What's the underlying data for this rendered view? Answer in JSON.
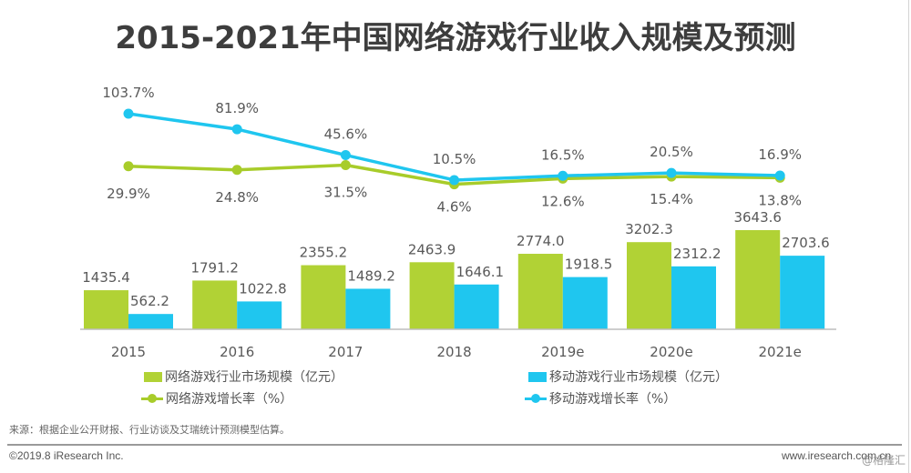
{
  "title": "2015-2021年中国网络游戏行业收入规模及预测",
  "chart_data": {
    "type": "bar+line",
    "title": "2015-2021年中国网络游戏行业收入规模及预测",
    "categories": [
      "2015",
      "2016",
      "2017",
      "2018",
      "2019e",
      "2020e",
      "2021e"
    ],
    "bar_series": [
      {
        "name": "网络游戏行业市场规模（亿元）",
        "color": "#b1d235",
        "values": [
          1435.4,
          1791.2,
          2355.2,
          2463.9,
          2774.0,
          3202.3,
          3643.6
        ],
        "labels": [
          "1435.4",
          "1791.2",
          "2355.2",
          "2463.9",
          "2774.0",
          "3202.3",
          "3643.6"
        ]
      },
      {
        "name": "移动游戏行业市场规模（亿元）",
        "color": "#1fc6ef",
        "values": [
          562.2,
          1022.8,
          1489.2,
          1646.1,
          1918.5,
          2312.2,
          2703.6
        ],
        "labels": [
          "562.2",
          "1022.8",
          "1489.2",
          "1646.1",
          "1918.5",
          "2312.2",
          "2703.6"
        ]
      }
    ],
    "line_series": [
      {
        "name": "网络游戏增长率（%）",
        "color": "#a8cc2a",
        "values": [
          29.9,
          24.8,
          31.5,
          4.6,
          12.6,
          15.4,
          13.8
        ],
        "labels": [
          "29.9%",
          "24.8%",
          "31.5%",
          "4.6%",
          "12.6%",
          "15.4%",
          "13.8%"
        ],
        "label_position": "below"
      },
      {
        "name": "移动游戏增长率（%）",
        "color": "#1fc6ef",
        "values": [
          103.7,
          81.9,
          45.6,
          10.5,
          16.5,
          20.5,
          16.9
        ],
        "labels": [
          "103.7%",
          "81.9%",
          "45.6%",
          "10.5%",
          "16.5%",
          "20.5%",
          "16.9%"
        ],
        "label_position": "above"
      }
    ],
    "bar_unit": "亿元",
    "line_unit": "%",
    "xlabel": "",
    "ylabel": "",
    "grid": false,
    "axes_visible": false,
    "legend_position": "bottom"
  },
  "legend": [
    {
      "label": "网络游戏行业市场规模（亿元）",
      "kind": "bar",
      "color": "#b1d235"
    },
    {
      "label": "移动游戏行业市场规模（亿元）",
      "kind": "bar",
      "color": "#1fc6ef"
    },
    {
      "label": "网络游戏增长率（%）",
      "kind": "line",
      "color": "#a8cc2a"
    },
    {
      "label": "移动游戏增长率（%）",
      "kind": "line",
      "color": "#1fc6ef"
    }
  ],
  "footer": {
    "source": "来源：根据企业公开财报、行业访谈及艾瑞统计预测模型估算。",
    "copyright": "©2019.8 iResearch Inc.",
    "website": "www.iresearch.com.cn",
    "watermark": "@格隆汇"
  }
}
